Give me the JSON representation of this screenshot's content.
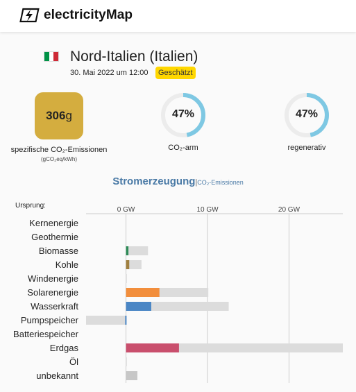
{
  "header": {
    "logo_text": "electricityMap"
  },
  "zone": {
    "name": "Nord-Italien (Italien)",
    "flag_colors": [
      "#009246",
      "#ffffff",
      "#ce2b37"
    ],
    "datetime": "30. Mai 2022 um 12:00",
    "badge": "Geschätzt"
  },
  "co2": {
    "value": "306",
    "unit_suffix": "g",
    "label": "spezifische CO₂-Emissionen",
    "unit": "(gCO₂eq/kWh)",
    "color": "#d4ad3f"
  },
  "gauges": [
    {
      "value": "47%",
      "fraction": 0.47,
      "label": "CO₂-arm"
    },
    {
      "value": "47%",
      "fraction": 0.47,
      "label": "regenerativ"
    }
  ],
  "tabs": {
    "main": "Stromerzeugung",
    "separator": "|",
    "alt": "CO₂-Emissionen"
  },
  "chart_data": {
    "type": "bar",
    "origin_label": "Ursprung:",
    "x_ticks": [
      "0 GW",
      "10 GW",
      "20 GW"
    ],
    "x_tick_values": [
      0,
      10,
      20
    ],
    "xlim": [
      -4.9,
      26.6
    ],
    "categories": [
      "Kernenergie",
      "Geothermie",
      "Biomasse",
      "Kohle",
      "Windenergie",
      "Solarenergie",
      "Wasserkraft",
      "Pumpspeicher",
      "Batteriespeicher",
      "Erdgas",
      "Öl",
      "unbekannt"
    ],
    "series": [
      {
        "values": [
          0,
          0,
          0.3,
          0.4,
          0,
          4.1,
          3.1,
          -0.1,
          0,
          6.5,
          0,
          1.4
        ]
      },
      {
        "values": [
          0,
          0,
          2.7,
          1.9,
          0.1,
          10.1,
          12.6,
          -4.9,
          0,
          26.6,
          0.1,
          1.4
        ]
      }
    ],
    "colors": [
      "#c7c7c7",
      "#c7c7c7",
      "#2e8b57",
      "#a08040",
      "#8fb8d8",
      "#f28e3c",
      "#4a86c5",
      "#4a86c5",
      "#c7c7c7",
      "#c94f6d",
      "#888888",
      "#c7c7c7"
    ],
    "capacity_color": "#dcdcdc"
  }
}
